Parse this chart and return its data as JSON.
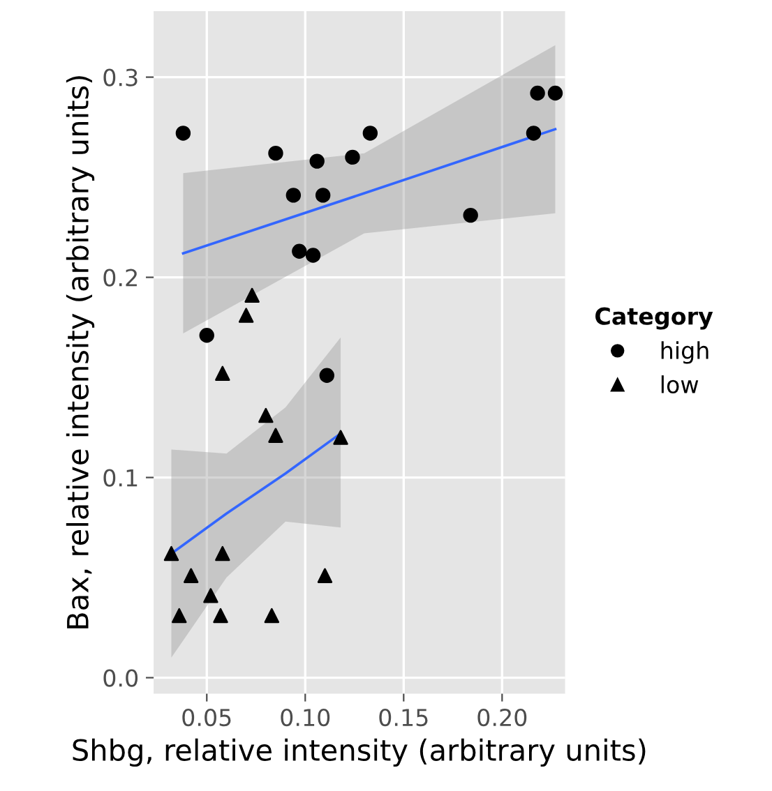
{
  "chart_data": {
    "type": "scatter",
    "xlabel": "Shbg, relative intensity (arbitrary units)",
    "ylabel": "Bax, relative intensity (arbitrary units)",
    "legend_title": "Category",
    "xlim": [
      0.023,
      0.232
    ],
    "ylim": [
      -0.008,
      0.333
    ],
    "xticks": [
      {
        "value": 0.05,
        "label": "0.05"
      },
      {
        "value": 0.1,
        "label": "0.10"
      },
      {
        "value": 0.15,
        "label": "0.15"
      },
      {
        "value": 0.2,
        "label": "0.20"
      }
    ],
    "yticks": [
      {
        "value": 0,
        "label": "0.0"
      },
      0.1,
      0.2,
      0.3
    ],
    "grid": true,
    "legend": "right",
    "series": [
      {
        "name": "high",
        "marker": "circle",
        "color": "#000000",
        "x": [
          0.038,
          0.085,
          0.106,
          0.124,
          0.133,
          0.094,
          0.109,
          0.097,
          0.104,
          0.184,
          0.218,
          0.227,
          0.216,
          0.05,
          0.111
        ],
        "values": [
          0.272,
          0.262,
          0.258,
          0.26,
          0.272,
          0.241,
          0.241,
          0.213,
          0.211,
          0.231,
          0.292,
          0.292,
          0.272,
          0.171,
          0.151
        ]
      },
      {
        "name": "low",
        "marker": "triangle",
        "color": "#000000",
        "x": [
          0.058,
          0.073,
          0.07,
          0.08,
          0.085,
          0.118,
          0.032,
          0.058,
          0.042,
          0.11,
          0.052,
          0.036,
          0.057,
          0.083
        ],
        "values": [
          0.152,
          0.191,
          0.181,
          0.131,
          0.121,
          0.12,
          0.062,
          0.062,
          0.051,
          0.051,
          0.041,
          0.031,
          0.031,
          0.031
        ]
      },
      {
        "type": "line",
        "color": "#3366ff",
        "x": [
          0.038,
          0.13,
          0.227
        ],
        "values": [
          0.212,
          0.242,
          0.274
        ],
        "lower": [
          0.172,
          0.222,
          0.232
        ],
        "upper": [
          0.252,
          0.262,
          0.316
        ]
      },
      {
        "type": "line",
        "color": "#3366ff",
        "x": [
          0.032,
          0.06,
          0.09,
          0.118
        ],
        "values": [
          0.062,
          0.082,
          0.102,
          0.122
        ],
        "lower": [
          0.01,
          0.05,
          0.078,
          0.075
        ],
        "upper": [
          0.114,
          0.112,
          0.135,
          0.17
        ]
      }
    ]
  }
}
